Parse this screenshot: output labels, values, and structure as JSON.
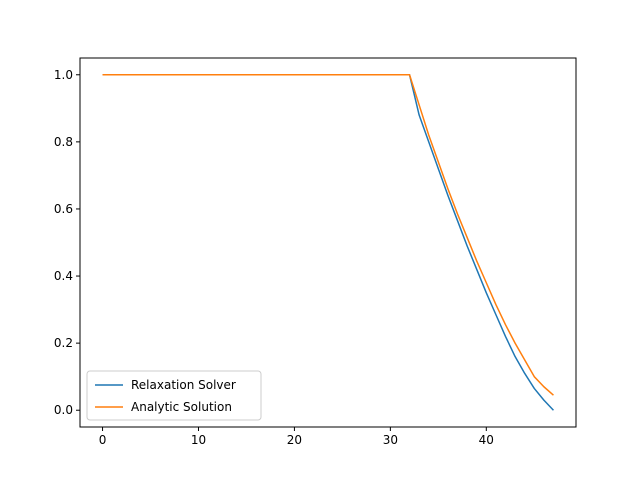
{
  "chart_data": {
    "type": "line",
    "title": "",
    "xlabel": "",
    "ylabel": "",
    "xlim": [
      -2.35,
      49.35
    ],
    "ylim": [
      -0.05,
      1.05
    ],
    "xticks": [
      0,
      10,
      20,
      30,
      40
    ],
    "xtick_labels": [
      "0",
      "10",
      "20",
      "30",
      "40"
    ],
    "yticks": [
      0.0,
      0.2,
      0.4,
      0.6,
      0.8,
      1.0
    ],
    "ytick_labels": [
      "0.0",
      "0.2",
      "0.4",
      "0.6",
      "0.8",
      "1.0"
    ],
    "grid": false,
    "legend_position": "lower-left",
    "x": [
      0,
      1,
      2,
      3,
      4,
      5,
      6,
      7,
      8,
      9,
      10,
      11,
      12,
      13,
      14,
      15,
      16,
      17,
      18,
      19,
      20,
      21,
      22,
      23,
      24,
      25,
      26,
      27,
      28,
      29,
      30,
      31,
      32,
      33,
      34,
      35,
      36,
      37,
      38,
      39,
      40,
      41,
      42,
      43,
      44,
      45,
      46,
      47
    ],
    "series": [
      {
        "name": "Relaxation Solver",
        "color": "#1f77b4",
        "values": [
          1,
          1,
          1,
          1,
          1,
          1,
          1,
          1,
          1,
          1,
          1,
          1,
          1,
          1,
          1,
          1,
          1,
          1,
          1,
          1,
          1,
          1,
          1,
          1,
          1,
          1,
          1,
          1,
          1,
          1,
          1,
          1,
          1,
          0.88,
          0.8,
          0.72,
          0.64,
          0.565,
          0.49,
          0.42,
          0.35,
          0.285,
          0.22,
          0.16,
          0.11,
          0.065,
          0.03,
          0.0
        ]
      },
      {
        "name": "Analytic Solution",
        "color": "#ff7f0e",
        "values": [
          1,
          1,
          1,
          1,
          1,
          1,
          1,
          1,
          1,
          1,
          1,
          1,
          1,
          1,
          1,
          1,
          1,
          1,
          1,
          1,
          1,
          1,
          1,
          1,
          1,
          1,
          1,
          1,
          1,
          1,
          1,
          1,
          1,
          0.91,
          0.82,
          0.74,
          0.66,
          0.585,
          0.515,
          0.445,
          0.38,
          0.315,
          0.255,
          0.2,
          0.15,
          0.1,
          0.07,
          0.045
        ]
      }
    ]
  }
}
